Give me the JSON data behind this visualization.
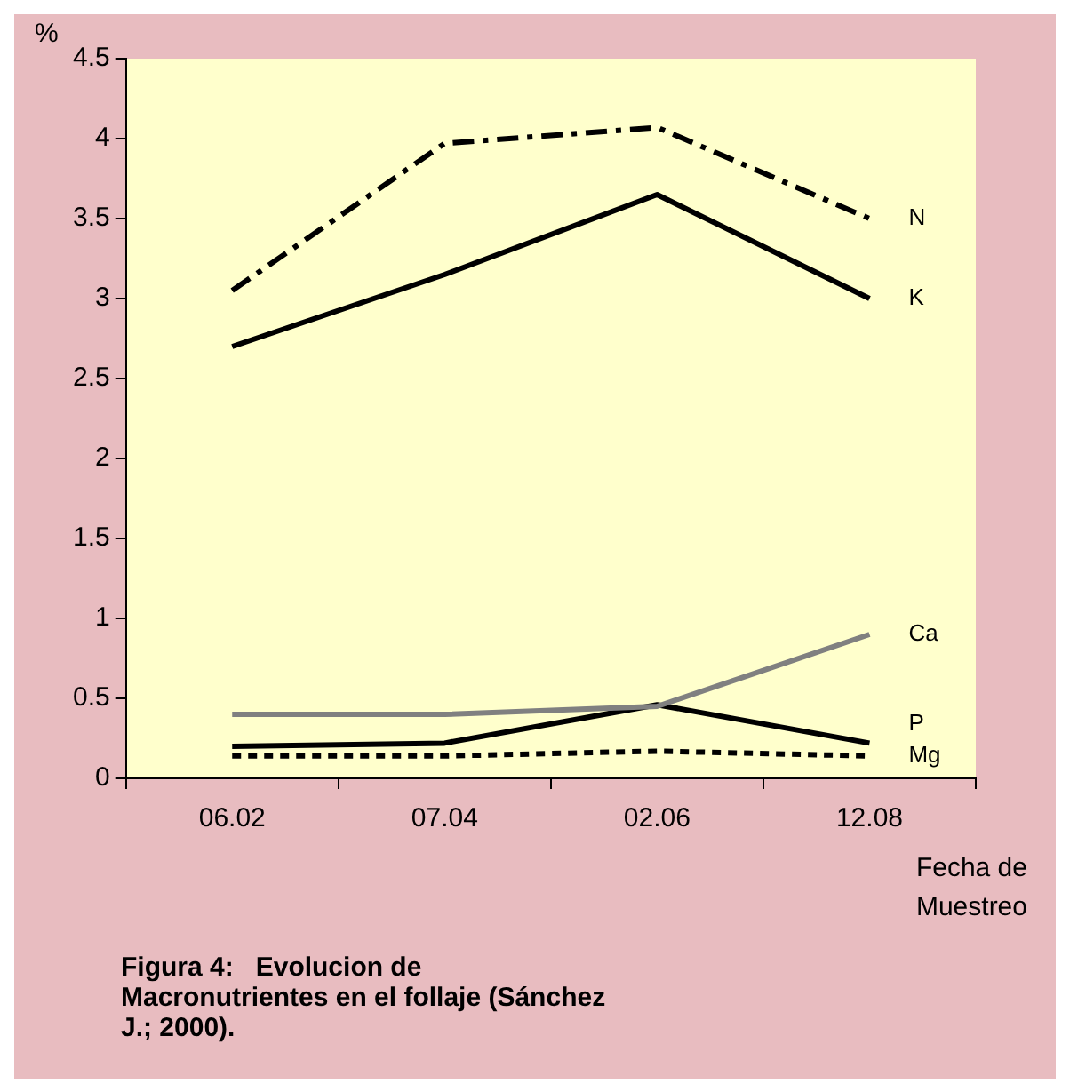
{
  "chart_data": {
    "type": "line",
    "title": "Figura 4:   Evolucion de Macronutrientes en el follaje (Sánchez J.; 2000).",
    "xlabel": "Fecha de Muestreo",
    "ylabel": "%",
    "categories": [
      "06.02",
      "07.04",
      "02.06",
      "12.08"
    ],
    "series": [
      {
        "name": "N",
        "color": "#000000",
        "line_style": "dashed",
        "values": [
          3.05,
          3.97,
          4.07,
          3.5
        ]
      },
      {
        "name": "K",
        "color": "#000000",
        "line_style": "solid",
        "values": [
          2.7,
          3.15,
          3.65,
          3.0
        ]
      },
      {
        "name": "Ca",
        "color": "#808080",
        "line_style": "solid",
        "values": [
          0.4,
          0.4,
          0.45,
          0.9
        ]
      },
      {
        "name": "P",
        "color": "#000000",
        "line_style": "solid",
        "values": [
          0.2,
          0.22,
          0.46,
          0.22
        ]
      },
      {
        "name": "Mg",
        "color": "#000000",
        "line_style": "dotted",
        "values": [
          0.14,
          0.14,
          0.17,
          0.14
        ]
      }
    ],
    "ylim": [
      0,
      4.5
    ],
    "yticks": [
      0,
      0.5,
      1,
      1.5,
      2,
      2.5,
      3,
      3.5,
      4,
      4.5
    ],
    "legend": false,
    "marker": "none"
  }
}
